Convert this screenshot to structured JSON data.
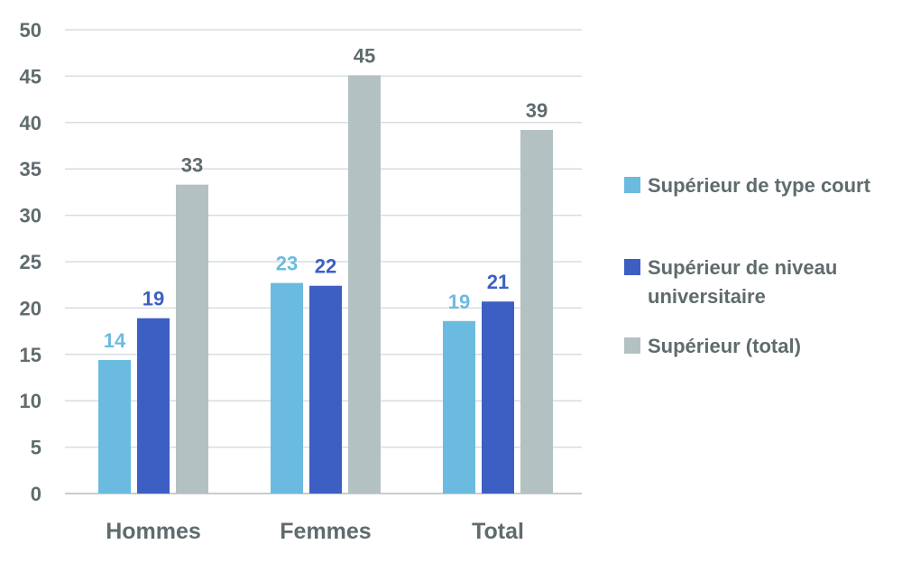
{
  "chart_data": {
    "type": "bar",
    "categories": [
      "Hommes",
      "Femmes",
      "Total"
    ],
    "series": [
      {
        "name": "Supérieur de type court",
        "values": [
          14,
          23,
          19
        ],
        "color": "#6bbbe0"
      },
      {
        "name": "Supérieur de niveau universitaire",
        "values": [
          19,
          22,
          21
        ],
        "color": "#3d5fc4"
      },
      {
        "name": "Supérieur (total)",
        "values": [
          33,
          45,
          39
        ],
        "color": "#b3c1c2"
      }
    ],
    "bar_values": [
      [
        14.4,
        22.7,
        18.6
      ],
      [
        18.9,
        22.4,
        20.7
      ],
      [
        33.3,
        45.1,
        39.2
      ]
    ],
    "ylim": [
      0,
      50
    ],
    "yticks": [
      "0",
      "5",
      "10",
      "15",
      "20",
      "25",
      "30",
      "35",
      "40",
      "45",
      "50"
    ],
    "grid": true,
    "legend_position": "right",
    "title": "",
    "xlabel": "",
    "ylabel": ""
  }
}
